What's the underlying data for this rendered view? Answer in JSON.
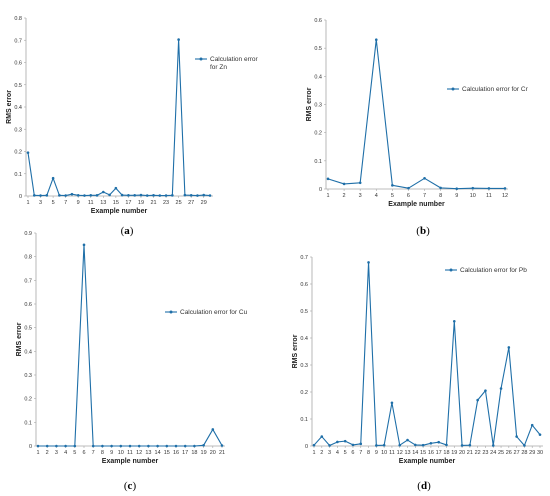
{
  "colors": {
    "series": "#1F6FA8",
    "axis": "#A6A6A6",
    "text": "#333333"
  },
  "chart_data": [
    {
      "id": "a",
      "caption": "(a)",
      "type": "line",
      "ylabel": "RMS error",
      "xlabel": "Example number",
      "ylim": [
        0,
        0.8
      ],
      "yticks": [
        0,
        0.1,
        0.2,
        0.3,
        0.4,
        0.5,
        0.6,
        0.7,
        0.8
      ],
      "yticklabels": [
        "0",
        "0.1",
        "0.2",
        "0.3",
        "0.4",
        "0.5",
        "0.6",
        "0.7",
        "0.8"
      ],
      "x": [
        1,
        2,
        3,
        4,
        5,
        6,
        7,
        8,
        9,
        10,
        11,
        12,
        13,
        14,
        15,
        16,
        17,
        18,
        19,
        20,
        21,
        22,
        23,
        24,
        25,
        26,
        27,
        28,
        29,
        30
      ],
      "xticks": [
        1,
        3,
        5,
        7,
        9,
        11,
        13,
        15,
        17,
        19,
        21,
        23,
        25,
        27,
        29
      ],
      "legend_position": "top-right",
      "series": [
        {
          "name": "Calculation error for Zn",
          "values": [
            0.195,
            0.003,
            0.002,
            0.003,
            0.08,
            0.003,
            0.002,
            0.008,
            0.003,
            0.002,
            0.003,
            0.003,
            0.018,
            0.005,
            0.035,
            0.004,
            0.003,
            0.003,
            0.004,
            0.002,
            0.003,
            0.002,
            0.002,
            0.003,
            0.703,
            0.004,
            0.003,
            0.002,
            0.004,
            0.002
          ]
        }
      ]
    },
    {
      "id": "b",
      "caption": "(b)",
      "type": "line",
      "ylabel": "RMS error",
      "xlabel": "Example number",
      "ylim": [
        0,
        0.6
      ],
      "yticks": [
        0,
        0.1,
        0.2,
        0.3,
        0.4,
        0.5,
        0.6
      ],
      "yticklabels": [
        "0",
        "0.1",
        "0.2",
        "0.3",
        "0.4",
        "0.5",
        "0.6"
      ],
      "x": [
        1,
        2,
        3,
        4,
        5,
        6,
        7,
        8,
        9,
        10,
        11,
        12
      ],
      "xticks": [
        1,
        2,
        3,
        4,
        5,
        6,
        7,
        8,
        9,
        10,
        11,
        12
      ],
      "legend_position": "top-right",
      "series": [
        {
          "name": "Calculation error for Cr",
          "values": [
            0.036,
            0.018,
            0.022,
            0.53,
            0.013,
            0.003,
            0.038,
            0.004,
            0.001,
            0.003,
            0.002,
            0.002
          ]
        }
      ]
    },
    {
      "id": "c",
      "caption": "(c)",
      "type": "line",
      "ylabel": "RMS error",
      "xlabel": "Example number",
      "ylim": [
        0,
        0.9
      ],
      "yticks": [
        0,
        0.1,
        0.2,
        0.3,
        0.4,
        0.5,
        0.6,
        0.7,
        0.8,
        0.9
      ],
      "yticklabels": [
        "0",
        "0.1",
        "0.2",
        "0.3",
        "0.4",
        "0.5",
        "0.6",
        "0.7",
        "0.8",
        "0.9"
      ],
      "x": [
        1,
        2,
        3,
        4,
        5,
        6,
        7,
        8,
        9,
        10,
        11,
        12,
        13,
        14,
        15,
        16,
        17,
        18,
        19,
        20,
        21
      ],
      "xticks": [
        1,
        2,
        3,
        4,
        5,
        6,
        7,
        8,
        9,
        10,
        11,
        12,
        13,
        14,
        15,
        16,
        17,
        18,
        19,
        20,
        21
      ],
      "legend_position": "right",
      "series": [
        {
          "name": "Calculation error for Cu",
          "values": [
            0,
            0,
            0,
            0,
            0,
            0.85,
            0,
            0,
            0,
            0,
            0,
            0,
            0,
            0,
            0,
            0,
            0,
            0,
            0.003,
            0.07,
            0.002
          ]
        }
      ]
    },
    {
      "id": "d",
      "caption": "(d)",
      "type": "line",
      "ylabel": "RMS error",
      "xlabel": "Example number",
      "ylim": [
        0,
        0.7
      ],
      "yticks": [
        0,
        0.1,
        0.2,
        0.3,
        0.4,
        0.5,
        0.6,
        0.7
      ],
      "yticklabels": [
        "0",
        "0.1",
        "0.2",
        "0.3",
        "0.4",
        "0.5",
        "0.6",
        "0.7"
      ],
      "x": [
        1,
        2,
        3,
        4,
        5,
        6,
        7,
        8,
        9,
        10,
        11,
        12,
        13,
        14,
        15,
        16,
        17,
        18,
        19,
        20,
        21,
        22,
        23,
        24,
        25,
        26,
        27,
        28,
        29,
        30
      ],
      "xticks": [
        1,
        2,
        3,
        4,
        5,
        6,
        7,
        8,
        9,
        10,
        11,
        12,
        13,
        14,
        15,
        16,
        17,
        18,
        19,
        20,
        21,
        22,
        23,
        24,
        25,
        26,
        27,
        28,
        29,
        30
      ],
      "legend_position": "top-right",
      "series": [
        {
          "name": "Calculation error for Pb",
          "values": [
            0.003,
            0.035,
            0.002,
            0.015,
            0.018,
            0.004,
            0.008,
            0.68,
            0.002,
            0.003,
            0.16,
            0.003,
            0.022,
            0.004,
            0.003,
            0.01,
            0.014,
            0.004,
            0.462,
            0.002,
            0.003,
            0.17,
            0.205,
            0.002,
            0.213,
            0.365,
            0.035,
            0.002,
            0.077,
            0.042
          ]
        }
      ]
    }
  ]
}
